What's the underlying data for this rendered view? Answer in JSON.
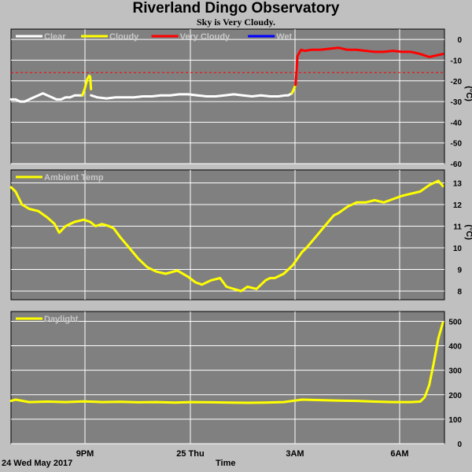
{
  "header": {
    "title": "Riverland Dingo Observatory",
    "subtitle": "Sky is Very Cloudy."
  },
  "footer": {
    "date_label": "24 Wed May 2017",
    "time_label": "Time"
  },
  "colors": {
    "background": "#c0c0c0",
    "plot_bg": "#808080",
    "grid": "#ffffff",
    "clear": "#ffffff",
    "cloudy": "#ffff00",
    "very_cloudy": "#ff0000",
    "wet": "#0000ff",
    "threshold": "#ff0000"
  },
  "chart_data": [
    {
      "type": "line",
      "name": "sky",
      "yunit": "(°C)",
      "ylim": [
        -60,
        5
      ],
      "yticks": [
        0,
        -10,
        -20,
        -30,
        -40,
        -50,
        -60
      ],
      "xticks": [
        "9PM",
        "25 Thu",
        "3AM",
        "6AM"
      ],
      "legend": [
        "Clear",
        "Cloudy",
        "Very Cloudy",
        "Wet"
      ],
      "threshold": -16,
      "series": [
        {
          "name": "Clear",
          "x": [
            0,
            0.5,
            1,
            1.5,
            2,
            2.5,
            3,
            3.5,
            4,
            4.5,
            5,
            5.5,
            6,
            6.5,
            7,
            7.5,
            7.85
          ],
          "y": [
            -29,
            -29,
            -30,
            -30,
            -29,
            -28,
            -27,
            -26,
            -27,
            -28,
            -29,
            -29,
            -28,
            -28,
            -27,
            -27,
            -27
          ]
        },
        {
          "name": "Cloudy",
          "x": [
            7.85,
            8.1,
            8.4,
            8.6,
            8.7,
            8.8
          ],
          "y": [
            -27,
            -24,
            -19,
            -17.5,
            -18,
            -24
          ]
        },
        {
          "name": "Clear",
          "x": [
            8.8,
            9.5,
            10.5,
            11.5,
            12.5,
            13.5,
            14.5,
            15.5,
            16.5,
            17.5,
            18.5,
            19.5,
            20.5,
            21.5,
            22.5,
            23.5,
            24.5,
            25.5,
            26.5,
            27.5,
            28.5,
            29.4,
            30.2,
            30.5,
            30.9
          ],
          "y": [
            -27,
            -28,
            -28.5,
            -28,
            -28,
            -28,
            -27.5,
            -27.5,
            -27,
            -27,
            -26.5,
            -26.5,
            -27,
            -27.5,
            -27.5,
            -27,
            -26.5,
            -27,
            -27.5,
            -27,
            -27.5,
            -27.5,
            -27,
            -27,
            -26
          ]
        },
        {
          "name": "Cloudy",
          "x": [
            30.9,
            31.1,
            31.3
          ],
          "y": [
            -26,
            -24,
            -22
          ]
        },
        {
          "name": "Very Cloudy",
          "x": [
            31.3,
            31.5,
            31.9,
            32.3,
            33,
            34,
            35,
            36,
            37,
            38,
            39,
            40,
            41,
            42,
            43,
            44,
            45,
            46,
            46.5,
            47.5
          ],
          "y": [
            -22,
            -8,
            -5,
            -5.5,
            -5,
            -5,
            -4.5,
            -4,
            -5,
            -5,
            -5.5,
            -6,
            -6,
            -5.5,
            -6,
            -6,
            -7,
            -8.5,
            -8,
            -7
          ]
        },
        {
          "name": "Wet",
          "x": [],
          "y": []
        }
      ]
    },
    {
      "type": "line",
      "name": "ambient",
      "yunit": "(°C)",
      "ylim": [
        7.6,
        13.6
      ],
      "yticks": [
        8,
        9,
        10,
        11,
        12,
        13
      ],
      "xticks": [
        "9PM",
        "25 Thu",
        "3AM",
        "6AM"
      ],
      "legend": [
        "Ambient Temp"
      ],
      "series": [
        {
          "name": "Ambient Temp",
          "x": [
            0,
            0.5,
            1.2,
            2,
            3,
            4,
            4.8,
            5.3,
            6,
            7,
            8,
            8.7,
            9.3,
            10,
            10.8,
            11.3,
            12,
            13,
            14,
            15,
            16,
            17,
            18.3,
            19.5,
            20.3,
            21,
            22,
            23,
            23.7,
            24.5,
            25.3,
            26,
            27,
            28,
            28.5,
            29,
            30,
            31,
            32,
            32.5,
            33.5,
            34.5,
            35.5,
            36,
            37,
            38,
            39,
            40,
            41,
            42,
            43,
            44,
            45,
            46,
            47,
            47.5
          ],
          "y": [
            12.8,
            12.6,
            12.0,
            11.8,
            11.7,
            11.4,
            11.1,
            10.7,
            11.0,
            11.2,
            11.3,
            11.2,
            11.0,
            11.1,
            11.0,
            10.9,
            10.5,
            10.0,
            9.5,
            9.1,
            8.9,
            8.8,
            8.95,
            8.65,
            8.4,
            8.3,
            8.5,
            8.6,
            8.2,
            8.1,
            8.0,
            8.2,
            8.1,
            8.5,
            8.6,
            8.6,
            8.8,
            9.2,
            9.8,
            10.0,
            10.5,
            11.0,
            11.5,
            11.6,
            11.9,
            12.1,
            12.1,
            12.2,
            12.1,
            12.25,
            12.4,
            12.5,
            12.6,
            12.9,
            13.1,
            12.85
          ]
        }
      ]
    },
    {
      "type": "line",
      "name": "daylight",
      "yunit": "",
      "ylim": [
        0,
        540
      ],
      "yticks": [
        0,
        100,
        200,
        300,
        400,
        500
      ],
      "xticks": [
        "9PM",
        "25 Thu",
        "3AM",
        "6AM"
      ],
      "legend": [
        "Daylight"
      ],
      "series": [
        {
          "name": "Daylight",
          "x": [
            0,
            0.5,
            2,
            4,
            6,
            8,
            10,
            12,
            14,
            16,
            18,
            20,
            22,
            24,
            26,
            28,
            30,
            32,
            34,
            36,
            38,
            40,
            42,
            44,
            45,
            45.5,
            46,
            46.5,
            47,
            47.5
          ],
          "y": [
            175,
            180,
            170,
            172,
            170,
            173,
            170,
            171,
            169,
            170,
            168,
            170,
            169,
            168,
            167,
            168,
            170,
            180,
            178,
            176,
            175,
            172,
            170,
            170,
            172,
            190,
            240,
            330,
            430,
            495
          ]
        }
      ]
    }
  ]
}
